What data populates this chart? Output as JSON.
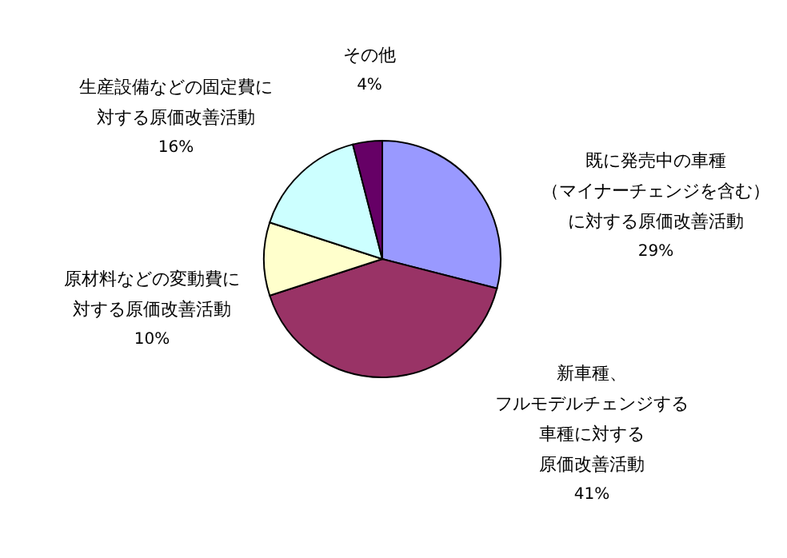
{
  "chart_data": {
    "type": "pie",
    "categories": [
      "既に発売中の車種（マイナーチェンジを含む）に対する原価改善活動",
      "新車種、フルモデルチェンジする車種に対する原価改善活動",
      "原材料などの変動費に対する原価改善活動",
      "生産設備などの固定費に対する原価改善活動",
      "その他"
    ],
    "values": [
      29,
      41,
      10,
      16,
      4
    ],
    "colors": [
      "#9999ff",
      "#993366",
      "#ffffcc",
      "#ccffff",
      "#660066"
    ],
    "value_labels": [
      "29%",
      "41%",
      "10%",
      "16%",
      "4%"
    ]
  }
}
